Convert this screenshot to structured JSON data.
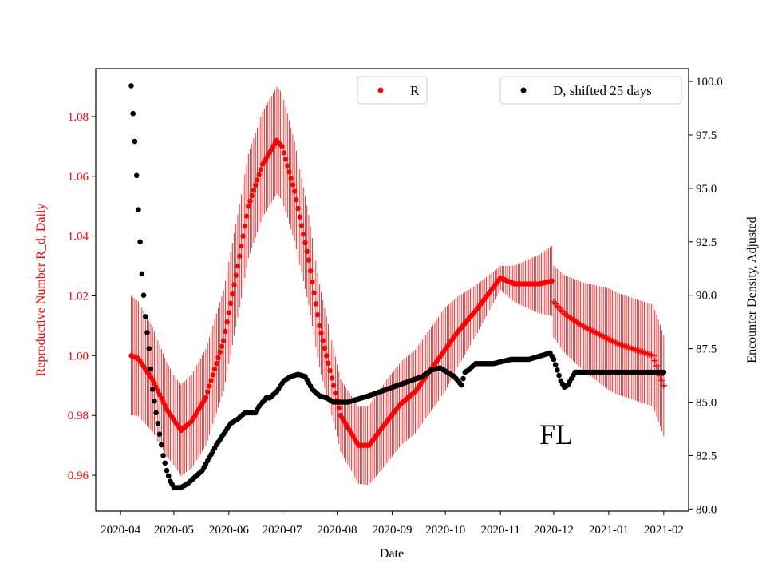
{
  "chart_data": {
    "type": "scatter",
    "region_label": "FL",
    "xlabel": "Date",
    "ylabel_left": "Reproductive Number R_d, Daily",
    "ylabel_right": "Encounter Density, Adjusted",
    "x_ticks": [
      "2020-04",
      "2020-05",
      "2020-06",
      "2020-07",
      "2020-08",
      "2020-09",
      "2020-10",
      "2020-11",
      "2020-12",
      "2021-01",
      "2021-02"
    ],
    "x_tick_day_offsets": [
      0,
      30,
      61,
      91,
      122,
      153,
      183,
      214,
      244,
      275,
      306
    ],
    "x_range_days": [
      -14,
      320
    ],
    "ylim_left": [
      0.948,
      1.096
    ],
    "ylim_right": [
      79.9,
      100.6
    ],
    "y_ticks_left": [
      "0.96",
      "0.98",
      "1.00",
      "1.02",
      "1.04",
      "1.06",
      "1.08"
    ],
    "y_ticks_right": [
      "80.0",
      "82.5",
      "85.0",
      "87.5",
      "90.0",
      "92.5",
      "95.0",
      "97.5",
      "100.0"
    ],
    "legend": [
      {
        "label": "R",
        "position": "top-center"
      },
      {
        "label": "D, shifted 25 days",
        "position": "top-right"
      }
    ],
    "colors": {
      "R": "#ff0000",
      "D": "#000000",
      "left_axis": "#ff0000",
      "right_axis": "#000000"
    },
    "series": [
      {
        "name": "R",
        "axis": "left",
        "marker": "dot, plus after day 243",
        "knots_day": [
          6,
          10,
          18,
          26,
          34,
          40,
          48,
          58,
          66,
          72,
          80,
          88,
          91,
          98,
          106,
          112,
          118,
          124,
          134,
          140,
          150,
          158,
          166,
          178,
          190,
          200,
          214,
          222,
          236,
          243,
          244,
          250,
          260,
          270,
          280,
          290,
          300,
          306
        ],
        "knots_value": [
          1.0,
          0.999,
          0.992,
          0.982,
          0.975,
          0.978,
          0.986,
          1.005,
          1.03,
          1.05,
          1.064,
          1.072,
          1.07,
          1.055,
          1.032,
          1.01,
          0.995,
          0.98,
          0.97,
          0.97,
          0.978,
          0.984,
          0.988,
          0.998,
          1.008,
          1.015,
          1.026,
          1.024,
          1.024,
          1.025,
          1.018,
          1.014,
          1.01,
          1.007,
          1.004,
          1.002,
          1.0,
          0.99
        ],
        "error_halfwidth_knots_day": [
          6,
          30,
          60,
          91,
          122,
          150,
          183,
          214,
          244,
          275,
          306
        ],
        "error_halfwidth_knots": [
          0.02,
          0.015,
          0.017,
          0.018,
          0.012,
          0.014,
          0.014,
          0.004,
          0.012,
          0.017,
          0.017
        ]
      },
      {
        "name": "D, shifted 25 days",
        "axis": "right",
        "marker": "dot",
        "knots_day": [
          6,
          8,
          10,
          12,
          14,
          16,
          18,
          20,
          22,
          24,
          26,
          28,
          30,
          32,
          34,
          38,
          42,
          46,
          50,
          54,
          58,
          62,
          66,
          70,
          74,
          76,
          78,
          80,
          82,
          84,
          88,
          92,
          96,
          100,
          104,
          108,
          112,
          116,
          120,
          124,
          126,
          128,
          132,
          136,
          140,
          150,
          160,
          170,
          175,
          180,
          184,
          188,
          192,
          194,
          196,
          200,
          210,
          220,
          230,
          238,
          242,
          244,
          246,
          248,
          250,
          252,
          256,
          260,
          300,
          306
        ],
        "knots_value": [
          99.8,
          97.2,
          94.0,
          91.0,
          89.0,
          87.5,
          85.6,
          84.5,
          83.5,
          82.5,
          81.8,
          81.3,
          81.0,
          81.0,
          81.0,
          81.2,
          81.5,
          81.8,
          82.4,
          83.0,
          83.5,
          84.0,
          84.2,
          84.5,
          84.5,
          84.5,
          84.8,
          85.0,
          85.2,
          85.2,
          85.5,
          86.0,
          86.2,
          86.3,
          86.2,
          85.6,
          85.3,
          85.2,
          85.0,
          85.0,
          85.0,
          85.0,
          85.1,
          85.2,
          85.3,
          85.6,
          85.9,
          86.2,
          86.5,
          86.6,
          86.4,
          86.2,
          85.8,
          86.4,
          86.5,
          86.8,
          86.8,
          87.0,
          87.0,
          87.2,
          87.3,
          87.0,
          86.5,
          86.0,
          85.7,
          85.8,
          86.4,
          86.4,
          86.4,
          86.4
        ]
      }
    ]
  }
}
